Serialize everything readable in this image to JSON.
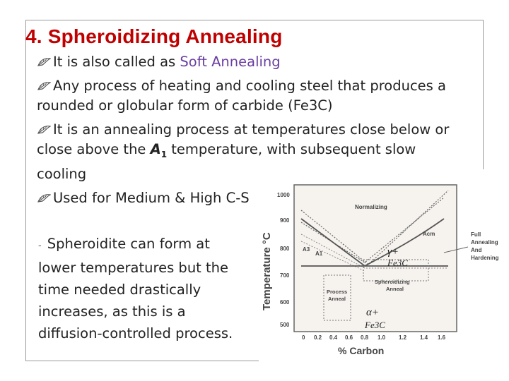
{
  "title": "4. Spheroidizing Annealing",
  "bullets": [
    {
      "pre": "It is also called as ",
      "highlight": "Soft Annealing"
    },
    {
      "text": "Any process of heating and cooling steel that produces a rounded or globular form of carbide (Fe3C)"
    },
    {
      "pre": "It is an annealing process at temperatures close below or close above the ",
      "a1": "A",
      "a1_sub": "1",
      "post": " temperature, with subsequent slow cooling"
    },
    {
      "text": "Used for Medium & High C-S"
    }
  ],
  "left_paragraph": {
    "dash": "-",
    "text": "Spheroidite can form at lower temperatures but the time needed drastically increases, as this is a diffusion-controlled process."
  },
  "diagram": {
    "y_axis_label": "Temperature °C",
    "x_axis_label": "% Carbon",
    "y_ticks": [
      "1000",
      "900",
      "800",
      "700",
      "600",
      "500"
    ],
    "x_ticks": [
      "0",
      "0.2",
      "0.4",
      "0.6",
      "0.8",
      "1.0",
      "1.2",
      "1.4",
      "1.6"
    ],
    "labels": {
      "normalizing": "Normalizing",
      "acm": "Acm",
      "a3": "A3",
      "a1": "A1",
      "process_anneal_1": "Process",
      "process_anneal_2": "Anneal",
      "spheroidizing_1": "Spheroidizing",
      "spheroidizing_2": "Anneal",
      "full_1": "Full",
      "full_2": "Annealing",
      "full_3": "And",
      "full_4": "Hardening"
    },
    "phase_gamma": "γ+",
    "phase_gamma_fe": "Fe3C",
    "phase_alpha": "α+",
    "phase_alpha_fe": "Fe3C"
  }
}
